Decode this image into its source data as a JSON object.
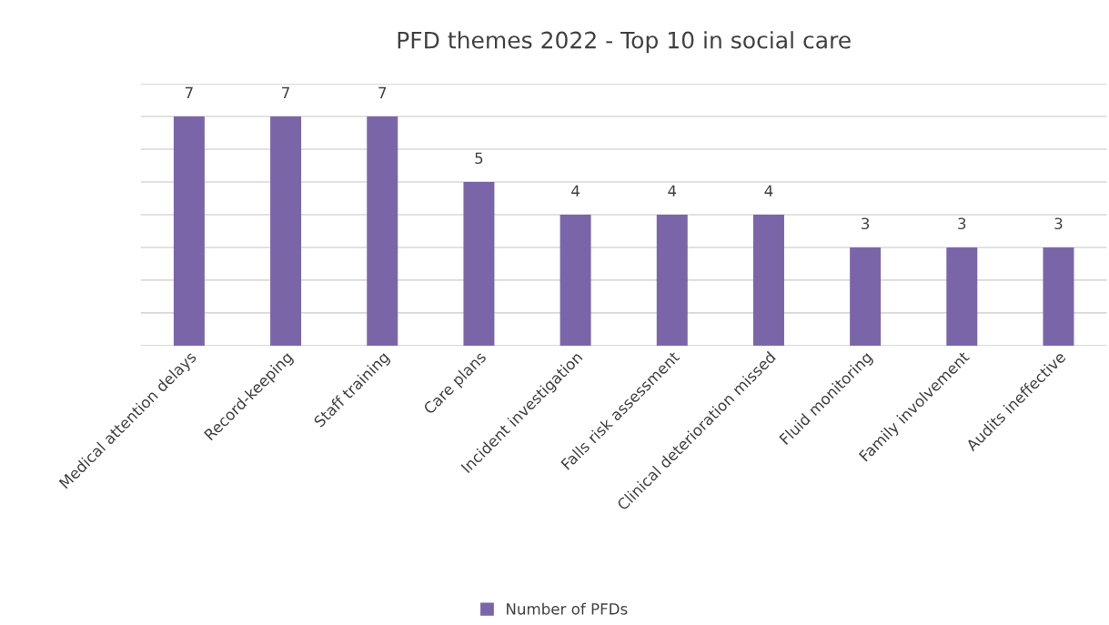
{
  "chart_data": {
    "type": "bar",
    "title": "PFD themes 2022 - Top 10 in social care",
    "categories": [
      "Medical attention delays",
      "Record-keeping",
      "Staff training",
      "Care plans",
      "Incident investigation",
      "Falls risk assessment",
      "Clinical deterioration missed",
      "Fluid monitoring",
      "Family involvement",
      "Audits ineffective"
    ],
    "series": [
      {
        "name": "Number of PFDs",
        "color": "#7a65a8",
        "values": [
          7,
          7,
          7,
          5,
          4,
          4,
          4,
          3,
          3,
          3
        ]
      }
    ],
    "ylim": [
      0,
      8
    ],
    "yticks": [
      {
        "value": 0,
        "label": null
      },
      {
        "value": 1,
        "label": null
      },
      {
        "value": 2,
        "label": null
      },
      {
        "value": 3,
        "label": null
      },
      {
        "value": 4,
        "label": null
      },
      {
        "value": 5,
        "label": null
      },
      {
        "value": 6,
        "label": null
      },
      {
        "value": 7,
        "label": null
      },
      {
        "value": 8,
        "label": null
      }
    ],
    "tick_labels": "x",
    "grid": "y",
    "legend": "bottom",
    "data_labels": true
  }
}
